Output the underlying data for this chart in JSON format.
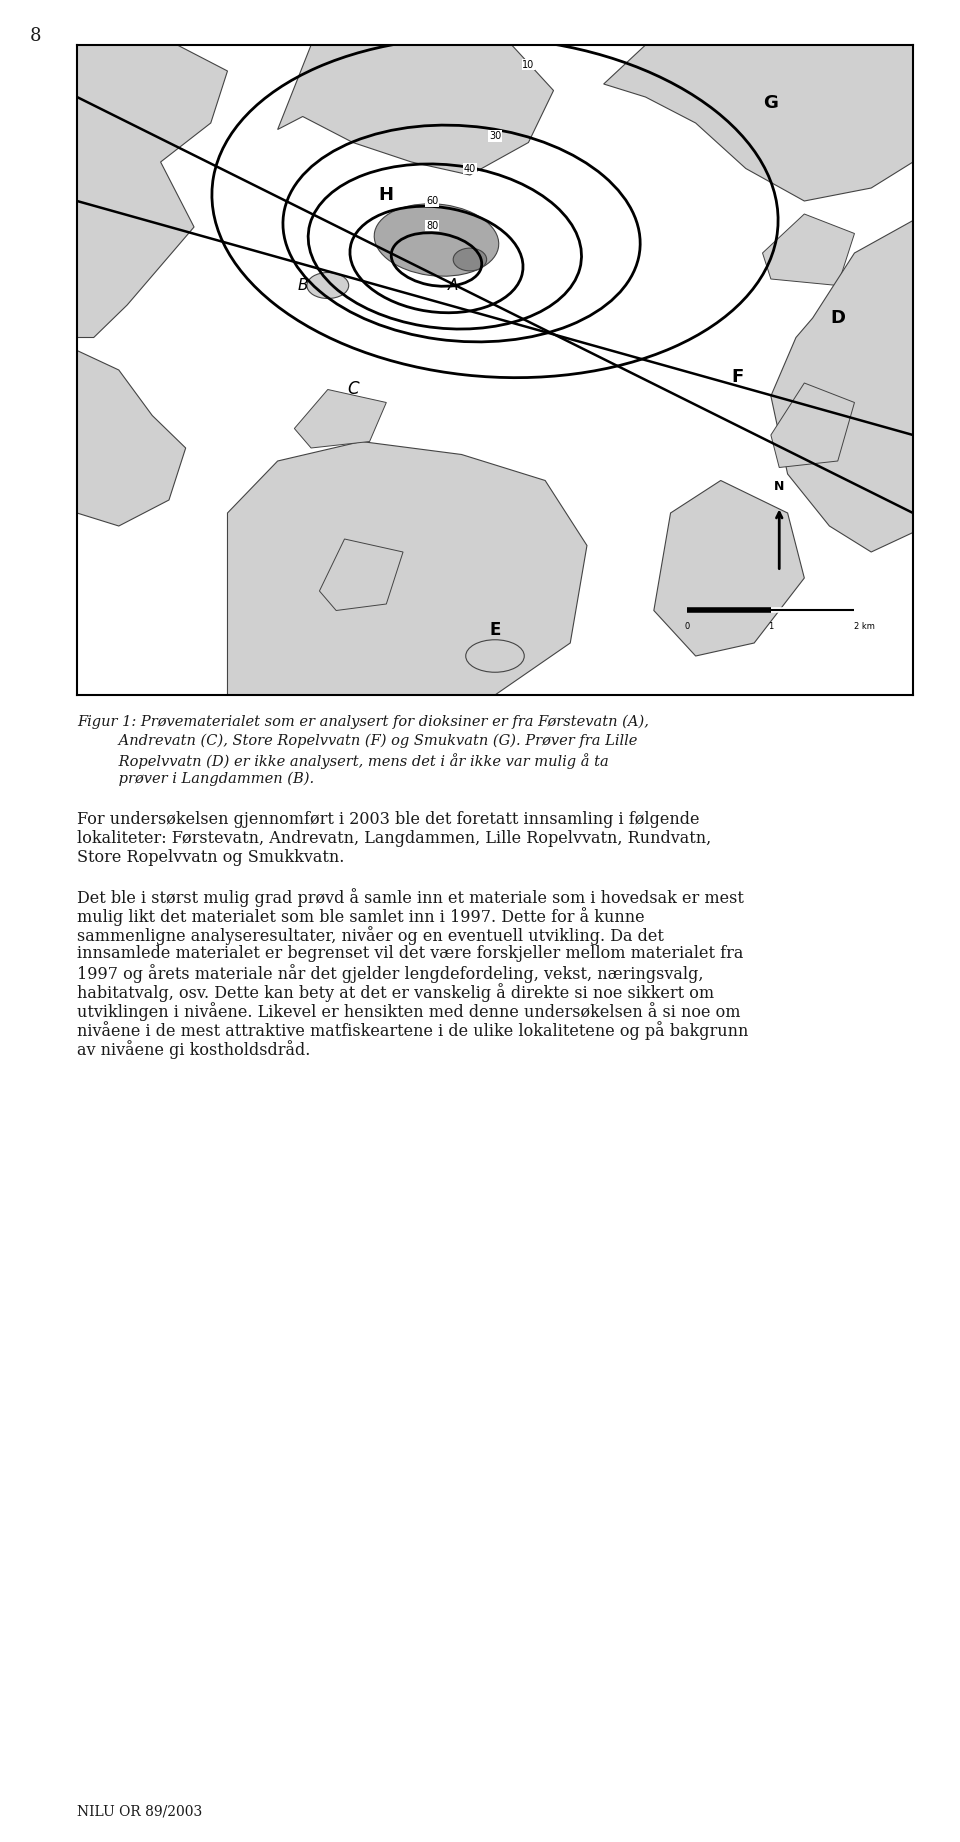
{
  "page_number": "8",
  "background_color": "#ffffff",
  "text_color": "#1a1a1a",
  "land_color": "#d0d0d0",
  "dark_land_color": "#aaaaaa",
  "darker_lake_color": "#888888",
  "body_fontsize": 11.5,
  "caption_fontsize": 10.5,
  "footer_fontsize": 10,
  "caption_lines": [
    "Figur 1: Prøvematerialet som er analysert for dioksiner er fra Førstevatn (A),",
    "         Andrevatn (C), Store Ropelvvatn (F) og Smukvatn (G). Prøver fra Lille",
    "         Ropelvvatn (D) er ikke analysert, mens det i år ikke var mulig å ta",
    "         prøver i Langdammen (B)."
  ],
  "p1_lines": [
    "For undersøkelsen gjennomført i 2003 ble det foretatt innsamling i følgende",
    "lokaliteter: Førstevatn, Andrevatn, Langdammen, Lille Ropelvvatn, Rundvatn,",
    "Store Ropelvvatn og Smukkvatn."
  ],
  "p2_lines": [
    "Det ble i størst mulig grad prøvd å samle inn et materiale som i hovedsak er mest",
    "mulig likt det materialet som ble samlet inn i 1997. Dette for å kunne",
    "sammenligne analyseresultater, nivåer og en eventuell utvikling. Da det",
    "innsamlede materialet er begrenset vil det være forskjeller mellom materialet fra",
    "1997 og årets materiale når det gjelder lengdefordeling, vekst, næringsvalg,",
    "habitatvalg, osv. Dette kan bety at det er vanskelig å direkte si noe sikkert om",
    "utviklingen i nivåene. Likevel er hensikten med denne undersøkelsen å si noe om",
    "nivåene i de mest attraktive matfiskeartene i de ulike lokalitetene og på bakgrunn",
    "av nivåene gi kostholdsdråd."
  ],
  "footer": "NILU OR 89/2003"
}
